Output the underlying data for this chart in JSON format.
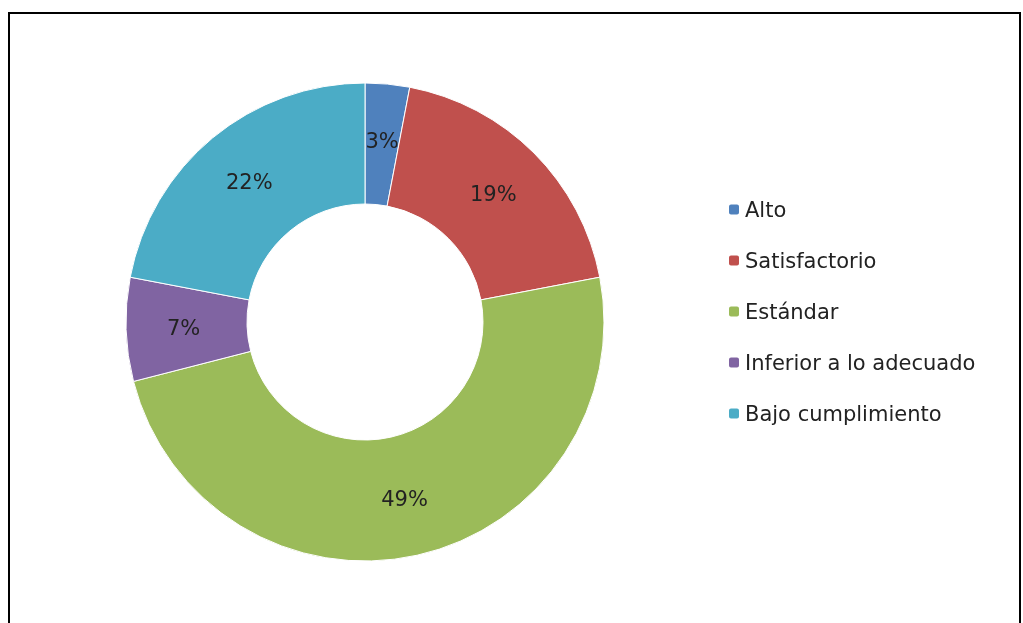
{
  "chart_data": {
    "type": "donut",
    "categories": [
      "Alto",
      "Satisfactorio",
      "Estándar",
      "Inferior a lo adecuado",
      "Bajo cumplimiento"
    ],
    "values": [
      3,
      19,
      49,
      7,
      22
    ],
    "colors": [
      "#4f81bd",
      "#c0504d",
      "#9bbb59",
      "#8064a2",
      "#4bacc6"
    ],
    "value_labels": [
      "3%",
      "19%",
      "49%",
      "7%",
      "22%"
    ],
    "legend": "right"
  }
}
